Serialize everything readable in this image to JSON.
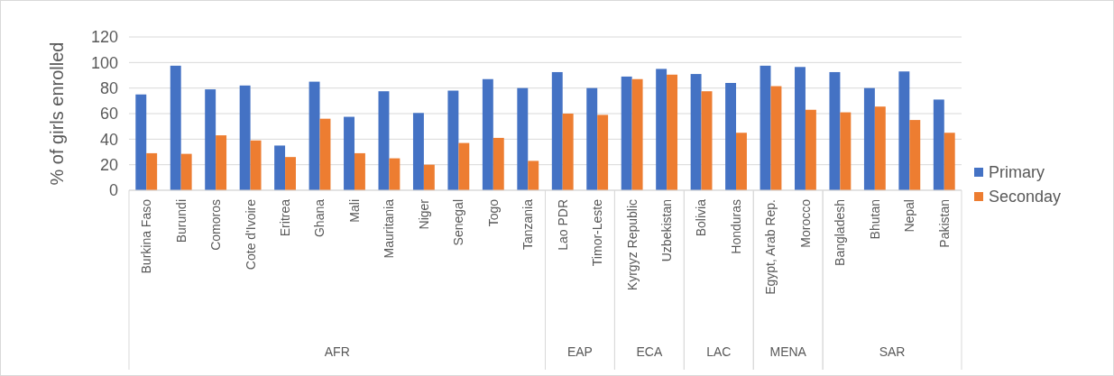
{
  "chart_data": {
    "type": "bar",
    "ylabel": "% of girls enrolled",
    "categories": [
      "Burkina Faso",
      "Burundi",
      "Comoros",
      "Cote d'Ivoire",
      "Eritrea",
      "Ghana",
      "Mali",
      "Mauritania",
      "Niger",
      "Senegal",
      "Togo",
      "Tanzania",
      "Lao PDR",
      "Timor-Leste",
      "Kyrgyz Republic",
      "Uzbekistan",
      "Bolivia",
      "Honduras",
      "Egypt, Arab Rep.",
      "Morocco",
      "Bangladesh",
      "Bhutan",
      "Nepal",
      "Pakistan"
    ],
    "series": [
      {
        "name": "Primary",
        "color": "#4472c4",
        "values": [
          75,
          97.5,
          79,
          82,
          35,
          85,
          57.5,
          77.5,
          60.5,
          78,
          87,
          80,
          92.5,
          80,
          89,
          95,
          91,
          84,
          97.5,
          96.5,
          92.5,
          80,
          93,
          71
        ]
      },
      {
        "name": "Seconday",
        "color": "#ed7d31",
        "values": [
          29,
          28.5,
          43,
          39,
          26,
          56,
          29,
          25,
          20,
          37,
          41,
          23,
          60,
          59,
          87,
          90.5,
          77.5,
          45,
          81.5,
          63,
          61,
          65.5,
          55,
          45
        ]
      }
    ],
    "ylim": [
      0,
      120
    ],
    "yticks": [
      0,
      20,
      40,
      60,
      80,
      100,
      120
    ],
    "grid": "y",
    "legend": "right",
    "annotations": [
      "AFR",
      "EAP",
      "ECA",
      "LAC",
      "MENA",
      "SAR"
    ]
  }
}
